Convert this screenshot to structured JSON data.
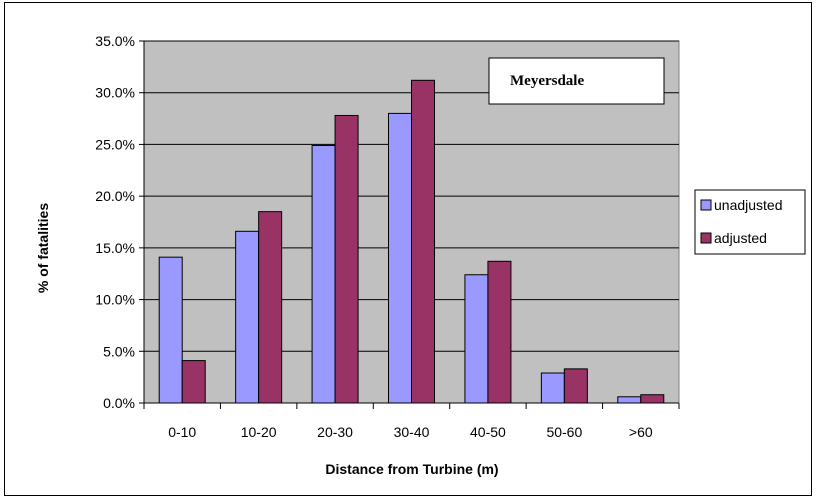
{
  "chart_data": {
    "type": "bar",
    "categories": [
      "0-10",
      "10-20",
      "20-30",
      "30-40",
      "40-50",
      "50-60",
      ">60"
    ],
    "series": [
      {
        "name": "unadjusted",
        "color": "#9999ff",
        "values": [
          14.1,
          16.6,
          24.9,
          28.0,
          12.4,
          2.9,
          0.6
        ]
      },
      {
        "name": "adjusted",
        "color": "#993366",
        "values": [
          4.1,
          18.5,
          27.8,
          31.2,
          13.7,
          3.3,
          0.8
        ]
      }
    ],
    "xlabel": "Distance from Turbine (m)",
    "ylabel": "% of fatalities",
    "ylim": [
      0,
      35
    ],
    "ytick_step": 5,
    "ytick_labels": [
      "0.0%",
      "5.0%",
      "10.0%",
      "15.0%",
      "20.0%",
      "25.0%",
      "30.0%",
      "35.0%"
    ],
    "annotation": "Meyersdale",
    "plot_background": "#c0c0c0",
    "grid": true,
    "legend_position": "right"
  }
}
